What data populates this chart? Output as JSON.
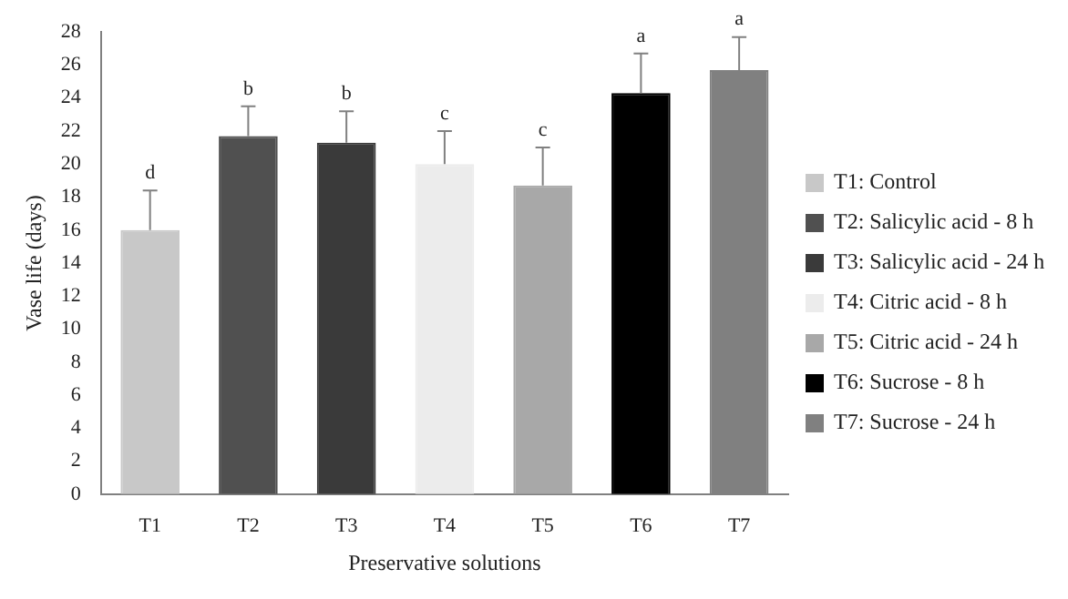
{
  "chart_data": {
    "type": "bar",
    "xlabel": "Preservative solutions",
    "ylabel": "Vase life (days)",
    "categories": [
      "T1",
      "T2",
      "T3",
      "T4",
      "T5",
      "T6",
      "T7"
    ],
    "series": [
      {
        "name": "T1: Control",
        "color": "#c8c8c8",
        "values": [
          16,
          null,
          null,
          null,
          null,
          null,
          null
        ],
        "errors": [
          [
            16,
            18.4
          ],
          null,
          null,
          null,
          null,
          null,
          null
        ]
      },
      {
        "name": "T2: Salicylic acid - 8 h",
        "color": "#505050",
        "values": [
          null,
          21.7,
          null,
          null,
          null,
          null,
          null
        ],
        "errors": [
          null,
          [
            21.7,
            23.5
          ],
          null,
          null,
          null,
          null,
          null
        ]
      },
      {
        "name": "T3: Salicylic acid - 24 h",
        "color": "#3a3a3a",
        "values": [
          null,
          null,
          21.3,
          null,
          null,
          null,
          null
        ],
        "errors": [
          null,
          null,
          [
            21.3,
            23.2
          ],
          null,
          null,
          null,
          null
        ]
      },
      {
        "name": "T4: Citric acid - 8 h",
        "color": "#ececec",
        "values": [
          null,
          null,
          null,
          20,
          null,
          null,
          null
        ],
        "errors": [
          null,
          null,
          null,
          [
            20,
            22
          ],
          null,
          null,
          null
        ]
      },
      {
        "name": "T5: Citric acid - 24 h",
        "color": "#a8a8a8",
        "values": [
          null,
          null,
          null,
          null,
          18.7,
          null,
          null
        ],
        "errors": [
          null,
          null,
          null,
          null,
          [
            18.7,
            21
          ],
          null,
          null
        ]
      },
      {
        "name": "T6: Sucrose - 8 h",
        "color": "#000000",
        "values": [
          null,
          null,
          null,
          null,
          null,
          24.3,
          null
        ],
        "errors": [
          null,
          null,
          null,
          null,
          null,
          [
            24.3,
            26.7
          ],
          null
        ]
      },
      {
        "name": "T7: Sucrose - 24 h",
        "color": "#808080",
        "values": [
          null,
          null,
          null,
          null,
          null,
          null,
          25.7
        ],
        "errors": [
          null,
          null,
          null,
          null,
          null,
          null,
          [
            25.7,
            27.7
          ]
        ]
      }
    ],
    "ylim": [
      0,
      28
    ],
    "yticks": [
      0,
      2,
      4,
      6,
      8,
      10,
      12,
      14,
      16,
      18,
      20,
      22,
      24,
      26,
      28
    ],
    "grid": false,
    "legend": "right",
    "annotations": [
      {
        "text": "d",
        "x": "T1",
        "y": 18.4
      },
      {
        "text": "b",
        "x": "T2",
        "y": 23.5
      },
      {
        "text": "b",
        "x": "T3",
        "y": 23.2
      },
      {
        "text": "c",
        "x": "T4",
        "y": 22
      },
      {
        "text": "c",
        "x": "T5",
        "y": 21
      },
      {
        "text": "a",
        "x": "T6",
        "y": 26.7
      },
      {
        "text": "a",
        "x": "T7",
        "y": 27.7
      }
    ]
  }
}
